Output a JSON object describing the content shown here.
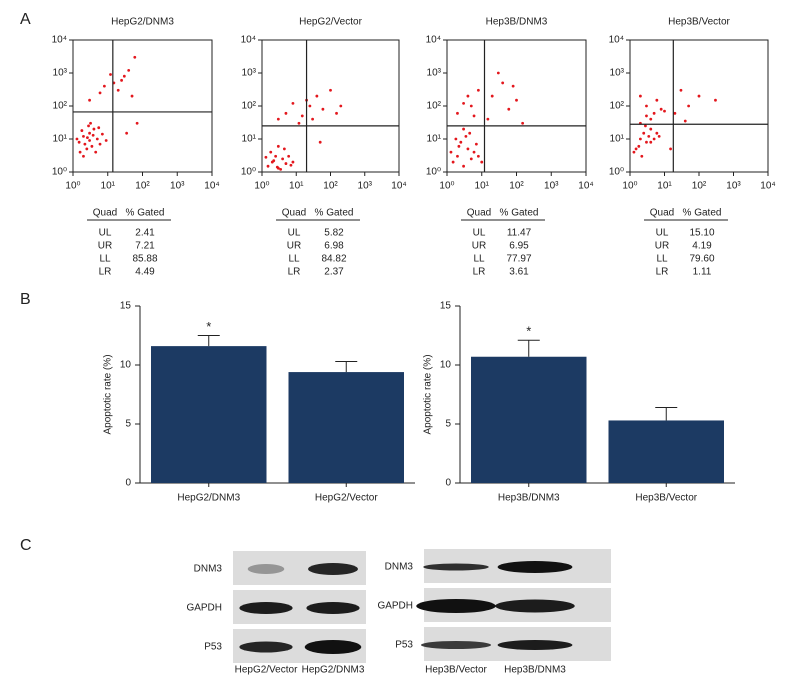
{
  "panels": [
    "A",
    "B",
    "C"
  ],
  "chart_data": [
    {
      "type": "scatter",
      "title": "HepG2/DNM3",
      "color": "#e3171d",
      "log_scale": true,
      "x": [
        1.5,
        2,
        2.5,
        3,
        3,
        4,
        2,
        5,
        3.5,
        1.8,
        6,
        2.8,
        4.5,
        1.3,
        7,
        3.2,
        2.2,
        5.5,
        9,
        1.6,
        2.6,
        3.8,
        25,
        30,
        15,
        40,
        60,
        20,
        8,
        12,
        50,
        35,
        70,
        3,
        6
      ],
      "values": [
        8,
        12,
        5,
        15,
        9,
        20,
        3,
        10,
        6,
        18,
        7,
        25,
        4,
        10,
        14,
        30,
        7,
        22,
        9,
        4,
        11,
        13,
        600,
        800,
        500,
        1200,
        3000,
        300,
        400,
        900,
        200,
        15,
        30,
        150,
        250
      ],
      "xlim": [
        1,
        10000
      ],
      "ylim": [
        1,
        10000
      ],
      "xticks": [
        {
          "value": 1,
          "label": "10⁰"
        },
        {
          "value": 10,
          "label": "10¹"
        },
        {
          "value": 100,
          "label": "10²"
        },
        {
          "value": 1000,
          "label": "10³"
        },
        {
          "value": 10000,
          "label": "10⁴"
        }
      ],
      "yticks": [
        {
          "value": 1,
          "label": "10⁰"
        },
        {
          "value": 10,
          "label": "10¹"
        },
        {
          "value": 100,
          "label": "10²"
        },
        {
          "value": 1000,
          "label": "10³"
        },
        {
          "value": 10000,
          "label": "10⁴"
        }
      ],
      "quadrant_x": 14,
      "quadrant_y": 66,
      "table": {
        "header": [
          "Quad",
          "% Gated"
        ],
        "rows": [
          [
            "UL",
            "2.41"
          ],
          [
            "UR",
            "7.21"
          ],
          [
            "LL",
            "85.88"
          ],
          [
            "LR",
            "4.49"
          ]
        ]
      }
    },
    {
      "type": "scatter",
      "title": "HepG2/Vector",
      "color": "#e3171d",
      "log_scale": true,
      "x": [
        1.5,
        2,
        3,
        2.5,
        4,
        5,
        1.8,
        3.5,
        6,
        2.2,
        7,
        1.3,
        4.5,
        2.8,
        8,
        3,
        15,
        25,
        40,
        60,
        100,
        30,
        20,
        150,
        12,
        5,
        8,
        3,
        50,
        200
      ],
      "values": [
        1.5,
        2,
        1.3,
        3,
        2.5,
        1.8,
        4,
        1.2,
        3,
        2.2,
        1.6,
        2.8,
        5,
        1.4,
        2,
        6,
        50,
        100,
        200,
        80,
        300,
        40,
        150,
        60,
        30,
        60,
        120,
        40,
        8,
        100
      ],
      "xlim": [
        1,
        10000
      ],
      "ylim": [
        1,
        10000
      ],
      "xticks": [
        {
          "value": 1,
          "label": "10⁰"
        },
        {
          "value": 10,
          "label": "10¹"
        },
        {
          "value": 100,
          "label": "10²"
        },
        {
          "value": 1000,
          "label": "10³"
        },
        {
          "value": 10000,
          "label": "10⁴"
        }
      ],
      "yticks": [
        {
          "value": 1,
          "label": "10⁰"
        },
        {
          "value": 10,
          "label": "10¹"
        },
        {
          "value": 100,
          "label": "10²"
        },
        {
          "value": 1000,
          "label": "10³"
        },
        {
          "value": 10000,
          "label": "10⁴"
        }
      ],
      "quadrant_x": 20,
      "quadrant_y": 25,
      "table": {
        "header": [
          "Quad",
          "% Gated"
        ],
        "rows": [
          [
            "UL",
            "5.82"
          ],
          [
            "UR",
            "6.98"
          ],
          [
            "LL",
            "84.82"
          ],
          [
            "LR",
            "2.37"
          ]
        ]
      }
    },
    {
      "type": "scatter",
      "title": "Hep3B/DNM3",
      "color": "#e3171d",
      "log_scale": true,
      "x": [
        1.5,
        2,
        3,
        4,
        2.5,
        5,
        6,
        1.8,
        3.5,
        8,
        2.2,
        10,
        1.3,
        4.5,
        7,
        3,
        2,
        5,
        8,
        20,
        40,
        60,
        100,
        30,
        15,
        4,
        6,
        3,
        150,
        80
      ],
      "values": [
        2,
        3,
        1.5,
        5,
        8,
        2.5,
        4,
        10,
        12,
        3,
        6,
        2,
        4,
        15,
        7,
        20,
        60,
        100,
        300,
        200,
        500,
        80,
        150,
        1000,
        40,
        200,
        50,
        120,
        30,
        400
      ],
      "xlim": [
        1,
        10000
      ],
      "ylim": [
        1,
        10000
      ],
      "xticks": [
        {
          "value": 1,
          "label": "10⁰"
        },
        {
          "value": 10,
          "label": "10¹"
        },
        {
          "value": 100,
          "label": "10²"
        },
        {
          "value": 1000,
          "label": "10³"
        },
        {
          "value": 10000,
          "label": "10⁴"
        }
      ],
      "yticks": [
        {
          "value": 1,
          "label": "10⁰"
        },
        {
          "value": 10,
          "label": "10¹"
        },
        {
          "value": 100,
          "label": "10²"
        },
        {
          "value": 1000,
          "label": "10³"
        },
        {
          "value": 10000,
          "label": "10⁴"
        }
      ],
      "quadrant_x": 12,
      "quadrant_y": 25,
      "table": {
        "header": [
          "Quad",
          "% Gated"
        ],
        "rows": [
          [
            "UL",
            "11.47"
          ],
          [
            "UR",
            "6.95"
          ],
          [
            "LL",
            "77.97"
          ],
          [
            "LR",
            "3.61"
          ]
        ]
      }
    },
    {
      "type": "scatter",
      "title": "Hep3B/Vector",
      "color": "#e3171d",
      "log_scale": true,
      "x": [
        1.5,
        2,
        2.5,
        3,
        4,
        2,
        3.5,
        1.8,
        5,
        2.8,
        6,
        1.3,
        4,
        3,
        2.2,
        5,
        8,
        3,
        6,
        2,
        10,
        20,
        50,
        100,
        300,
        30,
        7,
        4,
        15,
        40
      ],
      "values": [
        5,
        10,
        15,
        8,
        20,
        30,
        12,
        6,
        10,
        25,
        15,
        4,
        40,
        50,
        3,
        60,
        80,
        100,
        150,
        200,
        70,
        60,
        100,
        200,
        150,
        300,
        12,
        8,
        5,
        35
      ],
      "xlim": [
        1,
        10000
      ],
      "ylim": [
        1,
        10000
      ],
      "xticks": [
        {
          "value": 1,
          "label": "10⁰"
        },
        {
          "value": 10,
          "label": "10¹"
        },
        {
          "value": 100,
          "label": "10²"
        },
        {
          "value": 1000,
          "label": "10³"
        },
        {
          "value": 10000,
          "label": "10⁴"
        }
      ],
      "yticks": [
        {
          "value": 1,
          "label": "10⁰"
        },
        {
          "value": 10,
          "label": "10¹"
        },
        {
          "value": 100,
          "label": "10²"
        },
        {
          "value": 1000,
          "label": "10³"
        },
        {
          "value": 10000,
          "label": "10⁴"
        }
      ],
      "quadrant_x": 18,
      "quadrant_y": 28,
      "table": {
        "header": [
          "Quad",
          "% Gated"
        ],
        "rows": [
          [
            "UL",
            "15.10"
          ],
          [
            "UR",
            "4.19"
          ],
          [
            "LL",
            "79.60"
          ],
          [
            "LR",
            "1.11"
          ]
        ]
      }
    },
    {
      "type": "bar",
      "ylabel": "Apoptotic rate (%)",
      "color": "#1c3a63",
      "categories": [
        "HepG2/DNM3",
        "HepG2/Vector"
      ],
      "values": [
        11.6,
        9.4
      ],
      "errors": [
        0.9,
        0.9
      ],
      "significance": [
        "*",
        null
      ],
      "ylim": [
        0,
        15
      ],
      "yticks": [
        0,
        5,
        10,
        15
      ]
    },
    {
      "type": "bar",
      "ylabel": "Apoptotic rate (%)",
      "color": "#1c3a63",
      "categories": [
        "Hep3B/DNM3",
        "Hep3B/Vector"
      ],
      "values": [
        10.7,
        5.3
      ],
      "errors": [
        1.4,
        1.1
      ],
      "significance": [
        "*",
        null
      ],
      "ylim": [
        0,
        15
      ],
      "yticks": [
        0,
        5,
        10,
        15
      ]
    }
  ],
  "blots": [
    {
      "rows": [
        "DNM3",
        "GAPDH",
        "P53"
      ],
      "lanes": [
        "HepG2/Vector",
        "HepG2/DNM3"
      ]
    },
    {
      "rows": [
        "DNM3",
        "GAPDH",
        "P53"
      ],
      "lanes": [
        "Hep3B/Vector",
        "Hep3B/DNM3"
      ]
    }
  ]
}
